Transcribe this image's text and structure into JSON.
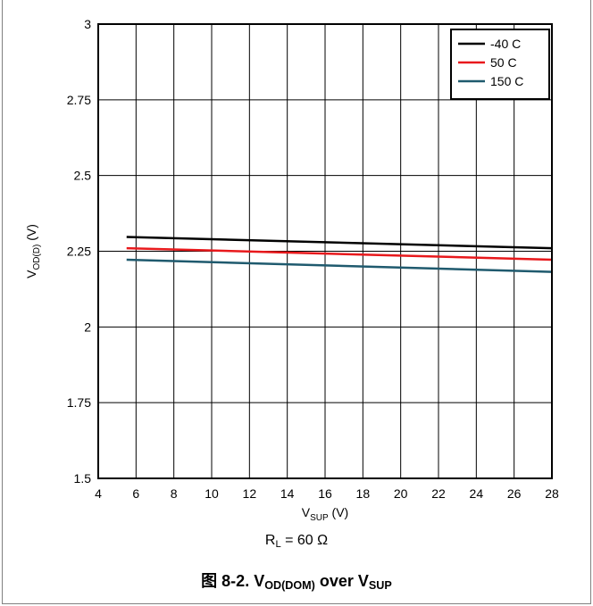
{
  "chart_data": {
    "type": "line",
    "xlabel": {
      "main": "V",
      "sub": "SUP",
      "unit": " (V)"
    },
    "ylabel": {
      "main": "V",
      "sub": "OD(D)",
      "unit": " (V)"
    },
    "xlim": [
      4,
      28
    ],
    "ylim": [
      1.5,
      3
    ],
    "x_ticks": [
      "4",
      "6",
      "8",
      "10",
      "12",
      "14",
      "16",
      "18",
      "20",
      "22",
      "24",
      "26",
      "28"
    ],
    "y_ticks": [
      "1.5",
      "1.75",
      "2",
      "2.25",
      "2.5",
      "2.75",
      "3"
    ],
    "x_tick_values": [
      4,
      6,
      8,
      10,
      12,
      14,
      16,
      18,
      20,
      22,
      24,
      26,
      28
    ],
    "y_tick_values": [
      1.5,
      1.75,
      2,
      2.25,
      2.5,
      2.75,
      3
    ],
    "grid": true,
    "legend_position": "top-right",
    "series": [
      {
        "name": "-40 C",
        "color": "#000000",
        "x": [
          5.5,
          28
        ],
        "y": [
          2.297,
          2.26
        ]
      },
      {
        "name": "50 C",
        "color": "#e8191c",
        "x": [
          5.5,
          28
        ],
        "y": [
          2.26,
          2.222
        ]
      },
      {
        "name": "150 C",
        "color": "#1f5a6e",
        "x": [
          5.5,
          28
        ],
        "y": [
          2.222,
          2.182
        ]
      }
    ]
  },
  "condition": {
    "main": "R",
    "sub": "L",
    "rest": " = 60 Ω"
  },
  "caption": {
    "prefix": "图 8-2. V",
    "sub1": "OD(DOM)",
    "mid": " over V",
    "sub2": "SUP"
  }
}
